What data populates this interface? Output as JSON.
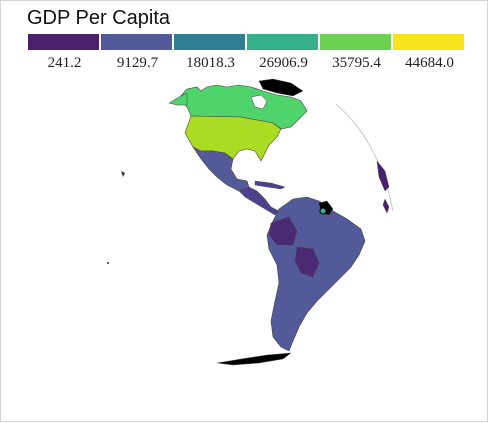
{
  "title": "GDP Per Capita",
  "legend": {
    "breaks": [
      "241.2",
      "9129.7",
      "18018.3",
      "26906.9",
      "35795.4",
      "44684.0"
    ],
    "colors": [
      "#4a1f6b",
      "#525a9a",
      "#307e93",
      "#35b08a",
      "#6ed050",
      "#f7e41d"
    ]
  },
  "map": {
    "projection": "orthographic",
    "regions": [
      {
        "name": "Canada",
        "color": "#4fd36b"
      },
      {
        "name": "United States",
        "color": "#a9dc22"
      },
      {
        "name": "Mexico",
        "color": "#525a9a"
      },
      {
        "name": "Central America",
        "color": "#4d4289"
      },
      {
        "name": "South America",
        "color": "#525a9a"
      },
      {
        "name": "Bolivia",
        "color": "#4a2a72"
      },
      {
        "name": "Greenland",
        "color": "#000000"
      },
      {
        "name": "French Guiana",
        "color": "#000000"
      },
      {
        "name": "Antarctica",
        "color": "#000000"
      }
    ]
  }
}
